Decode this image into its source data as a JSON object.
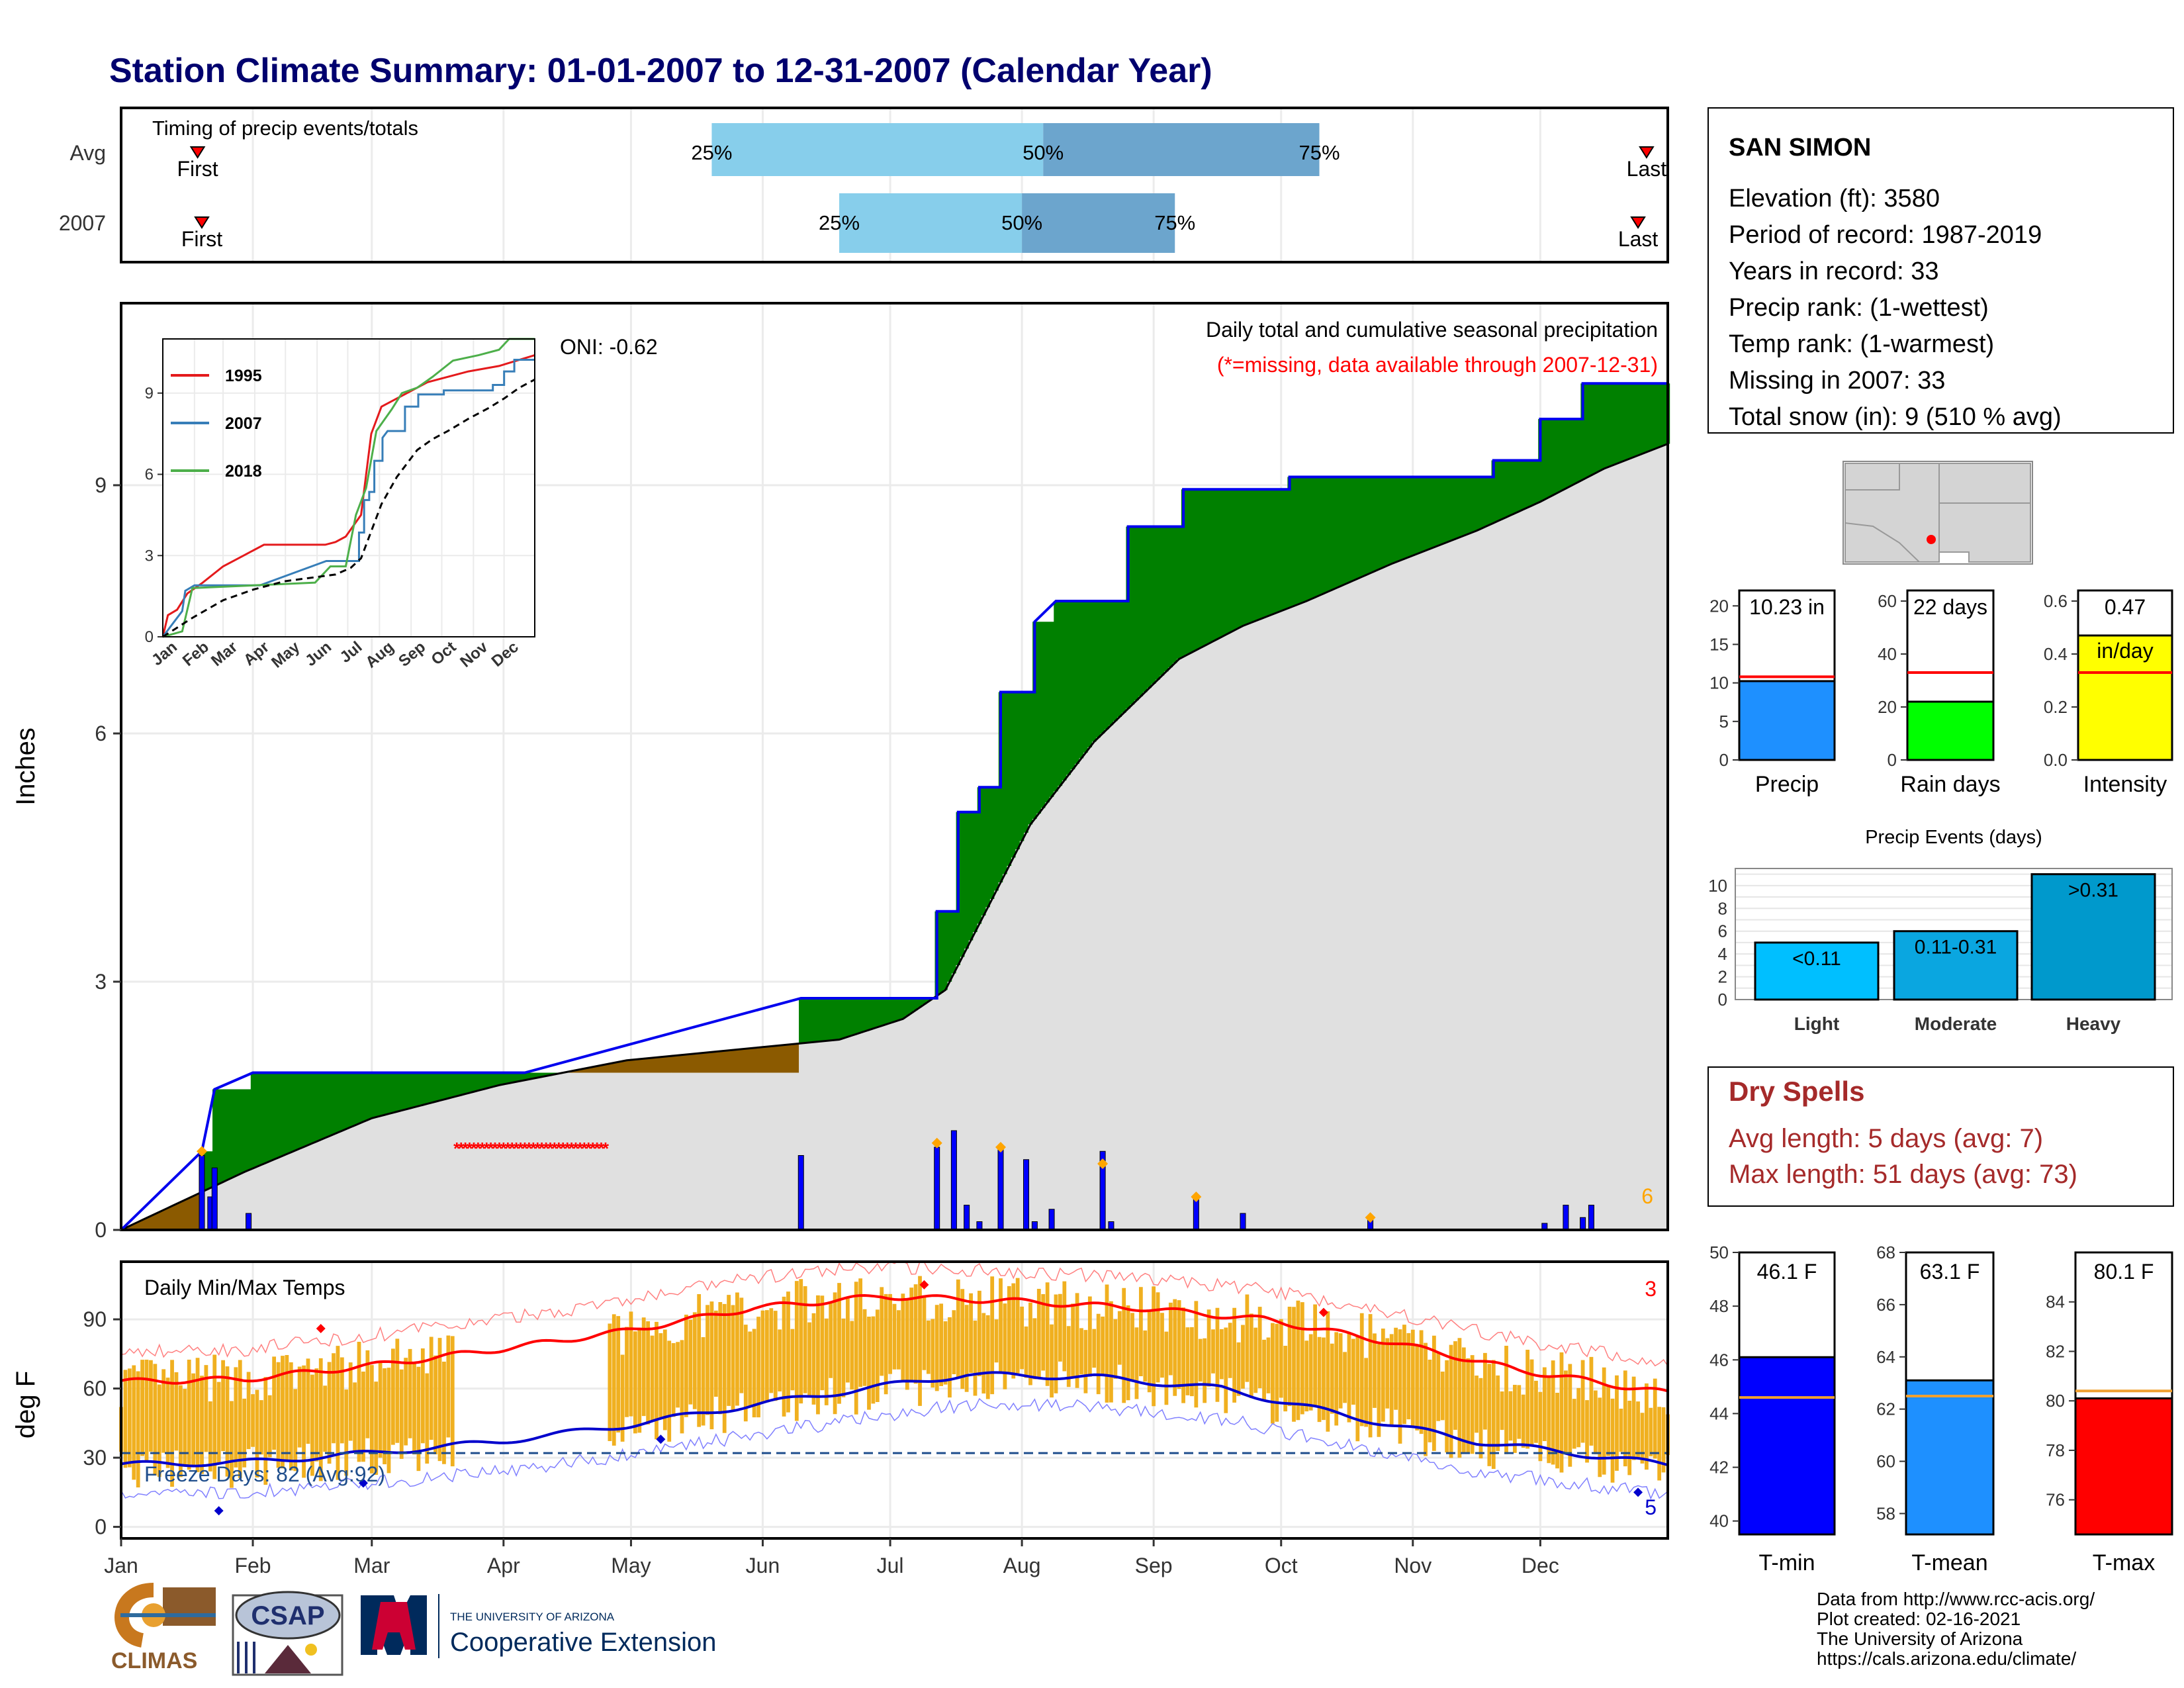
{
  "title": "Station Climate Summary: 01-01-2007 to 12-31-2007 (Calendar Year)",
  "colors": {
    "title": "#00006e",
    "precip_light": "#87ceeb",
    "precip_dark": "#6ca5cd",
    "surplus_green": "#008000",
    "deficit_brown": "#8b5a00",
    "normal_gray": "#e0e0e0",
    "cumulative_line": "#0000ee",
    "daily_bar": "#0000ff",
    "temp_bar": "#f0b020",
    "max_line": "#ff0000",
    "min_line": "#0000cc",
    "missing": "#ff0000",
    "dry_spell_text": "#a52a2a"
  },
  "months": [
    "Jan",
    "Feb",
    "Mar",
    "Apr",
    "May",
    "Jun",
    "Jul",
    "Aug",
    "Sep",
    "Oct",
    "Nov",
    "Dec"
  ],
  "timing": {
    "label": "Timing of precip events/totals",
    "rows": [
      {
        "label": "Avg",
        "first_label": "First",
        "last_label": "Last",
        "first_doy": 19,
        "last_doy": 360,
        "p25_doy": 140,
        "p50_doy": 218,
        "p75_doy": 283,
        "p25_label": "25%",
        "p50_label": "50%",
        "p75_label": "75%"
      },
      {
        "label": "2007",
        "first_label": "First",
        "last_label": "Last",
        "first_doy": 20,
        "last_doy": 358,
        "p25_doy": 170,
        "p50_doy": 213,
        "p75_doy": 249,
        "p25_label": "25%",
        "p50_label": "50%",
        "p75_label": "75%"
      }
    ]
  },
  "precip_panel": {
    "subtitle": "Daily total and cumulative seasonal precipitation",
    "missing_note": "(*=missing, data available through 2007-12-31)",
    "oni": "ONI: -0.62",
    "ylabel": "Inches",
    "yticks": [
      "0",
      "3",
      "6",
      "9"
    ],
    "corner_count": "6"
  },
  "inset": {
    "legend": [
      "1995",
      "2007",
      "2018"
    ],
    "yticks": [
      "0",
      "3",
      "6",
      "9"
    ],
    "xticks": [
      "Jan",
      "Feb",
      "Mar",
      "Apr",
      "May",
      "Jun",
      "Jul",
      "Aug",
      "Sep",
      "Oct",
      "Nov",
      "Dec"
    ]
  },
  "temp_panel": {
    "label": "Daily Min/Max Temps",
    "ylabel": "deg F",
    "yticks": [
      "0",
      "30",
      "60",
      "90"
    ],
    "freeze_text": "Freeze Days: 82 (Avg:92)",
    "count_hot": "3",
    "count_cold": "5"
  },
  "station": {
    "name": "SAN SIMON",
    "lines": [
      "Elevation (ft): 3580",
      "Period of record: 1987-2019",
      "Years in record: 33",
      "Precip rank:  (1-wettest)",
      "Temp rank:  (1-warmest)",
      "Missing in 2007: 33",
      "Total snow (in): 9 (510 % avg)"
    ]
  },
  "precip_bars": [
    {
      "label": "Precip",
      "value_label": "10.23 in",
      "ticks": [
        "0",
        "5",
        "10",
        "15",
        "20"
      ]
    },
    {
      "label": "Rain days",
      "value_label": "22 days",
      "ticks": [
        "0",
        "20",
        "40",
        "60"
      ]
    },
    {
      "label": "Intensity",
      "value_label": "0.47",
      "value_label2": "in/day",
      "ticks": [
        "0.0",
        "0.2",
        "0.4",
        "0.6"
      ]
    }
  ],
  "events": {
    "title": "Precip Events (days)",
    "ticks": [
      "0",
      "2",
      "4",
      "6",
      "8",
      "10"
    ],
    "bars": [
      {
        "label": "Light",
        "range": "<0.11",
        "value": 5
      },
      {
        "label": "Moderate",
        "range": "0.11-0.31",
        "value": 6
      },
      {
        "label": "Heavy",
        "range": ">0.31",
        "value": 11
      }
    ]
  },
  "dry_spells": {
    "title": "Dry Spells",
    "avg": "Avg length: 5 days (avg: 7)",
    "max": "Max length: 51 days (avg: 73)"
  },
  "temp_bars": [
    {
      "label": "T-min",
      "value_label": "46.1 F",
      "ticks": [
        "40",
        "42",
        "44",
        "46",
        "48",
        "50"
      ]
    },
    {
      "label": "T-mean",
      "value_label": "63.1 F",
      "ticks": [
        "58",
        "60",
        "62",
        "64",
        "66",
        "68"
      ]
    },
    {
      "label": "T-max",
      "value_label": "80.1 F",
      "ticks": [
        "76",
        "78",
        "80",
        "82",
        "84"
      ]
    }
  ],
  "logos": {
    "climas": "CLIMAS",
    "csap": "CSAP",
    "ua_small": "THE UNIVERSITY OF ARIZONA",
    "ua_big": "Cooperative Extension"
  },
  "footer": [
    "Data from http://www.rcc-acis.org/",
    "Plot created: 02-16-2021",
    "The University of Arizona",
    "https://cals.arizona.edu/climate/"
  ],
  "chart_data": [
    {
      "type": "line",
      "name": "precip",
      "title": "Daily total and cumulative seasonal precipitation",
      "ylabel": "Inches",
      "ylim": [
        0,
        11.2
      ],
      "cumulative_2007": [
        [
          1,
          0
        ],
        [
          20,
          0.95
        ],
        [
          23,
          1.7
        ],
        [
          32,
          1.9
        ],
        [
          96,
          1.9
        ],
        [
          161,
          2.8
        ],
        [
          193,
          2.8
        ],
        [
          193,
          3.85
        ],
        [
          198,
          3.85
        ],
        [
          198,
          5.05
        ],
        [
          203,
          5.05
        ],
        [
          203,
          5.35
        ],
        [
          208,
          5.35
        ],
        [
          208,
          6.5
        ],
        [
          216,
          6.5
        ],
        [
          216,
          7.35
        ],
        [
          221,
          7.6
        ],
        [
          238,
          7.6
        ],
        [
          238,
          8.5
        ],
        [
          251,
          8.5
        ],
        [
          251,
          8.95
        ],
        [
          276,
          8.95
        ],
        [
          276,
          9.1
        ],
        [
          297,
          9.1
        ],
        [
          324,
          9.1
        ],
        [
          324,
          9.3
        ],
        [
          335,
          9.3
        ],
        [
          335,
          9.8
        ],
        [
          345,
          9.8
        ],
        [
          345,
          10.23
        ],
        [
          365,
          10.23
        ]
      ],
      "average_cumulative": [
        [
          1,
          0
        ],
        [
          30,
          0.7
        ],
        [
          60,
          1.35
        ],
        [
          90,
          1.75
        ],
        [
          120,
          2.05
        ],
        [
          150,
          2.2
        ],
        [
          170,
          2.3
        ],
        [
          185,
          2.55
        ],
        [
          195,
          2.9
        ],
        [
          205,
          3.9
        ],
        [
          215,
          4.9
        ],
        [
          230,
          5.9
        ],
        [
          250,
          6.9
        ],
        [
          265,
          7.3
        ],
        [
          280,
          7.6
        ],
        [
          300,
          8.05
        ],
        [
          320,
          8.45
        ],
        [
          335,
          8.8
        ],
        [
          350,
          9.2
        ],
        [
          365,
          9.5
        ]
      ],
      "daily_bars": [
        [
          20,
          0.9
        ],
        [
          22,
          0.4
        ],
        [
          23,
          0.75
        ],
        [
          31,
          0.2
        ],
        [
          161,
          0.9
        ],
        [
          193,
          1.0
        ],
        [
          197,
          1.2
        ],
        [
          200,
          0.3
        ],
        [
          203,
          0.1
        ],
        [
          208,
          1.0
        ],
        [
          214,
          0.85
        ],
        [
          216,
          0.1
        ],
        [
          220,
          0.25
        ],
        [
          232,
          0.95
        ],
        [
          234,
          0.1
        ],
        [
          254,
          0.4
        ],
        [
          265,
          0.2
        ],
        [
          295,
          0.12
        ],
        [
          336,
          0.08
        ],
        [
          341,
          0.3
        ],
        [
          345,
          0.15
        ],
        [
          347,
          0.3
        ]
      ],
      "event_markers": [
        [
          20,
          0.95
        ],
        [
          193,
          1.05
        ],
        [
          208,
          1.0
        ],
        [
          232,
          0.8
        ],
        [
          254,
          0.4
        ],
        [
          295,
          0.15
        ]
      ],
      "missing_days": [
        80,
        115
      ]
    },
    {
      "type": "line",
      "name": "temperature",
      "title": "Daily Min/Max Temps",
      "ylabel": "deg F",
      "ylim": [
        -5,
        115
      ],
      "normal_max": [
        [
          1,
          63
        ],
        [
          30,
          64
        ],
        [
          60,
          70
        ],
        [
          90,
          77
        ],
        [
          120,
          85
        ],
        [
          150,
          95
        ],
        [
          180,
          100
        ],
        [
          210,
          98
        ],
        [
          240,
          95
        ],
        [
          270,
          90
        ],
        [
          300,
          80
        ],
        [
          330,
          68
        ],
        [
          365,
          58
        ]
      ],
      "normal_min": [
        [
          1,
          27
        ],
        [
          30,
          28
        ],
        [
          60,
          32
        ],
        [
          90,
          37
        ],
        [
          120,
          44
        ],
        [
          150,
          53
        ],
        [
          180,
          61
        ],
        [
          200,
          66
        ],
        [
          230,
          65
        ],
        [
          260,
          60
        ],
        [
          290,
          48
        ],
        [
          320,
          37
        ],
        [
          365,
          27
        ]
      ],
      "freeze_line": 32
    }
  ]
}
